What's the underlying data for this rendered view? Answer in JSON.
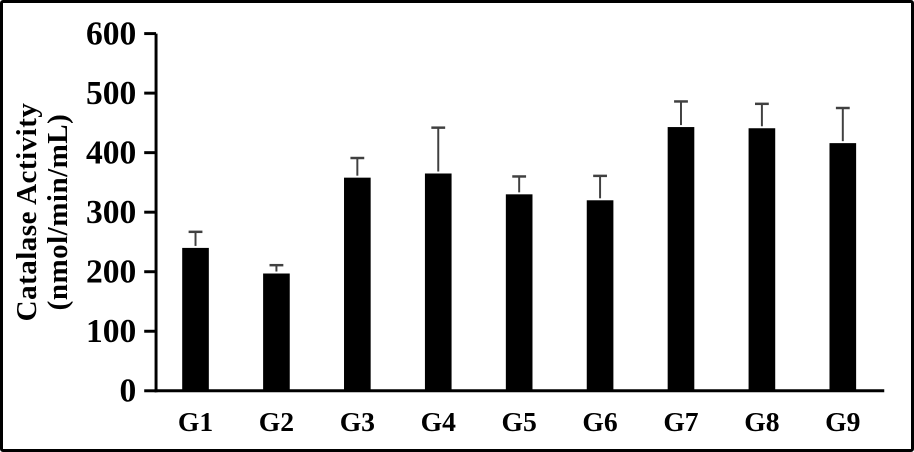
{
  "figure": {
    "border_color": "#000000",
    "background_color": "#ffffff"
  },
  "chart_data": {
    "type": "bar",
    "title": "",
    "xlabel": "",
    "ylabel_line1": "Catalase Activity",
    "ylabel_line2": "(nmol/min/mL)",
    "categories": [
      "G1",
      "G2",
      "G3",
      "G4",
      "G5",
      "G6",
      "G7",
      "G8",
      "G9"
    ],
    "series": [
      {
        "name": "Catalase Activity (nmol/min/mL)",
        "values": [
          240,
          197,
          358,
          365,
          330,
          320,
          443,
          441,
          416
        ],
        "errors_upper": [
          27,
          14,
          33,
          77,
          30,
          41,
          43,
          41,
          59
        ]
      }
    ],
    "ylim": [
      0,
      600
    ],
    "yticks": [
      0,
      100,
      200,
      300,
      400,
      500,
      600
    ],
    "grid": false,
    "legend": "none",
    "bar_color": "#000000",
    "error_bar_color": "#404040",
    "axis_color": "#000000",
    "text_color": "#000000"
  }
}
